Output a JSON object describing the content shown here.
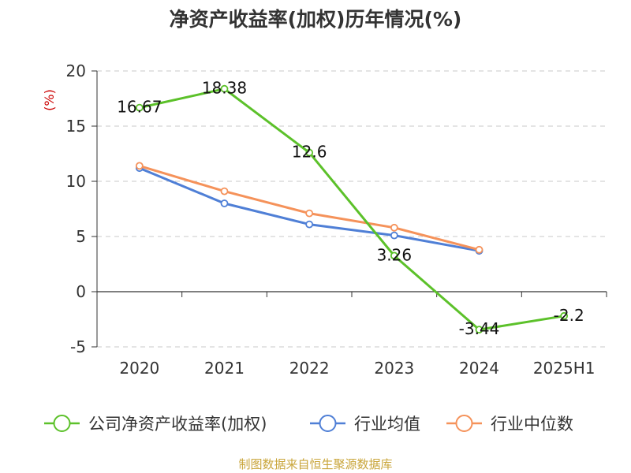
{
  "chart_data": {
    "type": "line",
    "title": "净资产收益率(加权)历年情况(%)",
    "unit_label": "(%)",
    "categories": [
      "2020",
      "2021",
      "2022",
      "2023",
      "2024",
      "2025H1"
    ],
    "y_ticks": [
      "20",
      "15",
      "10",
      "5",
      "0",
      "-5"
    ],
    "ylim": [
      -5,
      20
    ],
    "grid": true,
    "legend_position": "bottom",
    "series": [
      {
        "name": "公司净资产收益率(加权)",
        "color": "#5cc12a",
        "values": [
          16.67,
          18.38,
          12.6,
          3.26,
          -3.44,
          -2.2
        ],
        "labels": [
          "16.67",
          "18.38",
          "12.6",
          "3.26",
          "-3.44",
          "-2.2"
        ]
      },
      {
        "name": "行业均值",
        "color": "#4f7fd6",
        "values": [
          11.2,
          8.0,
          6.1,
          5.1,
          3.7,
          null
        ]
      },
      {
        "name": "行业中位数",
        "color": "#f5925a",
        "values": [
          11.4,
          9.1,
          7.1,
          5.8,
          3.8,
          null
        ]
      }
    ]
  },
  "source": "制图数据来自恒生聚源数据库"
}
